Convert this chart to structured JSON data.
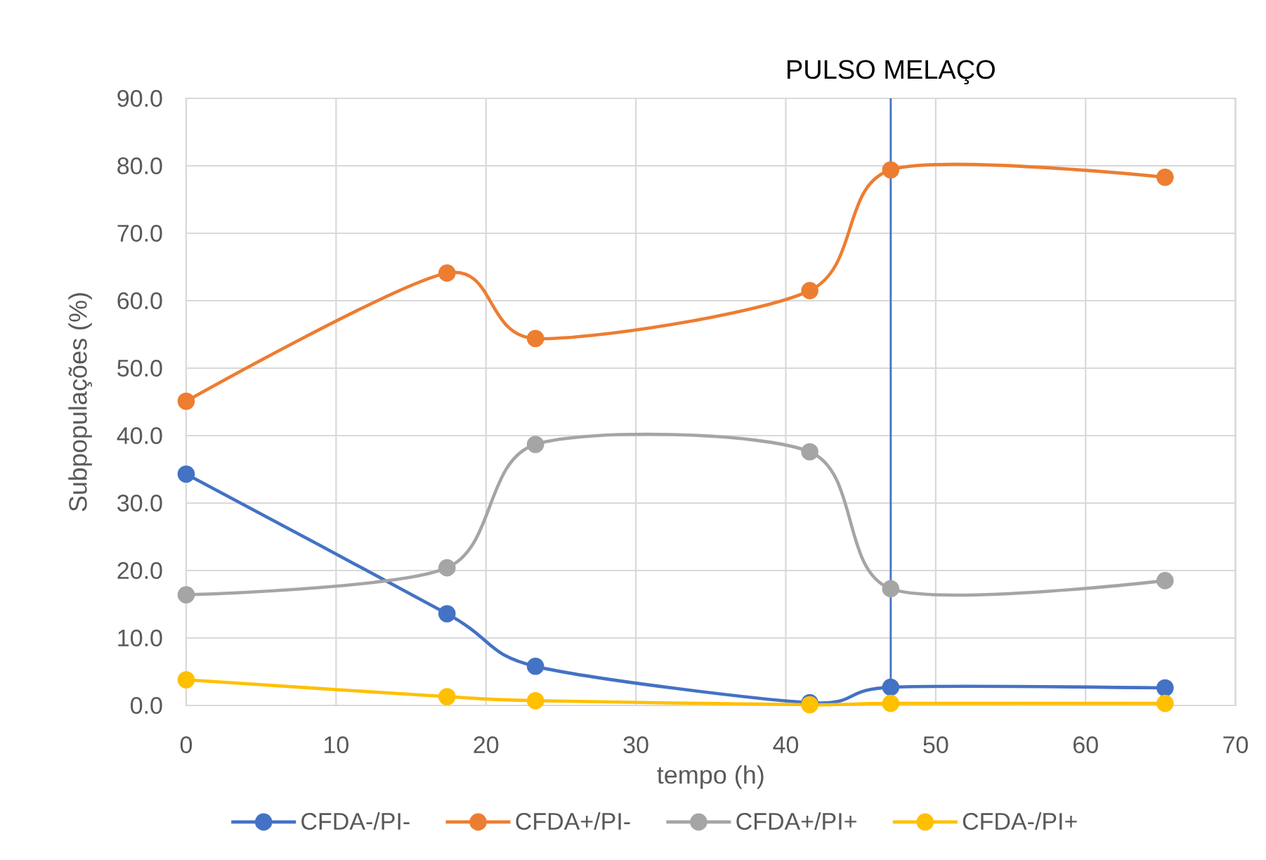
{
  "chart_data": {
    "type": "line",
    "xlabel": "tempo (h)",
    "ylabel": "Subpopulações (%)",
    "x": [
      0,
      17.4,
      23.3,
      41.6,
      47,
      65.3
    ],
    "series": [
      {
        "name": "CFDA-/PI-",
        "color": "#4472c4",
        "values": [
          34.3,
          13.6,
          5.8,
          0.4,
          2.7,
          2.6
        ]
      },
      {
        "name": "CFDA+/PI-",
        "color": "#ed7d31",
        "values": [
          45.1,
          64.1,
          54.4,
          61.5,
          79.4,
          78.3
        ]
      },
      {
        "name": "CFDA+/PI+",
        "color": "#a5a5a5",
        "values": [
          16.4,
          20.4,
          38.7,
          37.6,
          17.3,
          18.5
        ]
      },
      {
        "name": "CFDA-/PI+",
        "color": "#ffc000",
        "values": [
          3.8,
          1.3,
          0.7,
          0.1,
          0.3,
          0.3
        ]
      }
    ],
    "xlim": [
      0,
      70
    ],
    "xticks": [
      0,
      10,
      20,
      30,
      40,
      50,
      60,
      70
    ],
    "ylim": [
      0,
      90
    ],
    "yticks": [
      {
        "value": 0,
        "label": "0.0"
      },
      {
        "value": 10,
        "label": "10.0"
      },
      {
        "value": 20,
        "label": "20.0"
      },
      {
        "value": 30,
        "label": "30.0"
      },
      {
        "value": 40,
        "label": "40.0"
      },
      {
        "value": 50,
        "label": "50.0"
      },
      {
        "value": 60,
        "label": "60.0"
      },
      {
        "value": 70,
        "label": "70.0"
      },
      {
        "value": 80,
        "label": "80.0"
      },
      {
        "value": 90,
        "label": "90.0"
      }
    ],
    "ref_lines": [
      {
        "axis": "x",
        "value": 47,
        "label": "PULSO MELAÇO",
        "color": "#4472c4"
      }
    ],
    "grid": true,
    "legend": "bottom",
    "marker": "circle",
    "line_style": "solid"
  }
}
